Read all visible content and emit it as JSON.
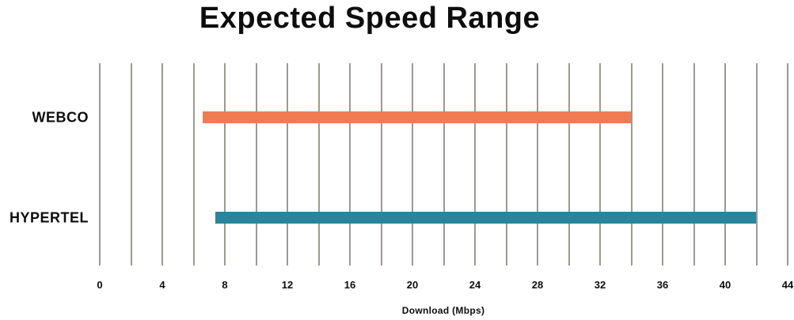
{
  "chart_data": {
    "type": "bar",
    "orientation": "horizontal",
    "title": "Expected Speed Range",
    "xlabel": "Download (Mbps)",
    "categories": [
      "WEBCO",
      "HYPERTEL"
    ],
    "series": [
      {
        "name": "WEBCO",
        "range_min": 6.6,
        "range_max": 34,
        "color": "#F07B53"
      },
      {
        "name": "HYPERTEL",
        "range_min": 7.4,
        "range_max": 42,
        "color": "#28859C"
      }
    ],
    "xlim": [
      0,
      44
    ],
    "x_ticks": [
      0,
      4,
      8,
      12,
      16,
      20,
      24,
      28,
      32,
      36,
      40,
      44
    ],
    "gridline_step": 2,
    "grid_on": true,
    "legend": "none",
    "colors": {
      "background": "#FFFFFF",
      "gridline": "#9D9992",
      "text": "#0D0D0D"
    }
  }
}
